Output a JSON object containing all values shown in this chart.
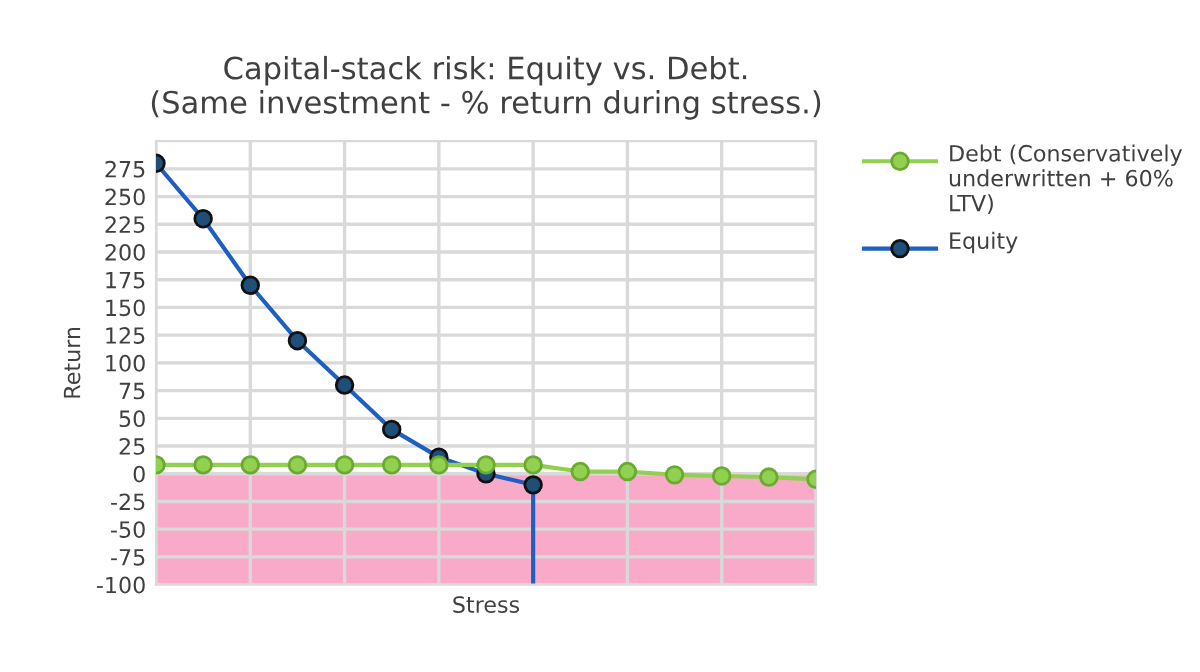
{
  "chart_data": {
    "type": "line",
    "title": "Capital-stack risk: Equity vs. Debt.\n(Same investment - % return during stress.)",
    "xlabel": "Stress",
    "ylabel": "Return",
    "categories": [
      null,
      null,
      null,
      null,
      null,
      null,
      null,
      null,
      null,
      null,
      null,
      null,
      null,
      null,
      null
    ],
    "ylim": [
      -100,
      300
    ],
    "yticks": [
      -100,
      -75,
      -50,
      -25,
      0,
      25,
      50,
      75,
      100,
      125,
      150,
      175,
      200,
      225,
      250,
      275
    ],
    "tick_labels": "y",
    "grid": true,
    "legend": "right",
    "marker": "circle",
    "line_style": "solid",
    "bands": [
      {
        "axis": "y",
        "from": -100,
        "to": 0,
        "color": "#f9aac8"
      }
    ],
    "series": [
      {
        "name": "Debt (Conservatively underwritten + 60% LTV)",
        "color": "#92d050",
        "values": [
          8,
          8,
          8,
          8,
          8,
          8,
          8,
          8,
          8,
          2,
          2,
          -1,
          -2,
          -3,
          -5
        ]
      },
      {
        "name": "Equity",
        "color": "#1f5fbf",
        "values": [
          280,
          230,
          170,
          120,
          80,
          40,
          15,
          0,
          -10,
          null,
          null,
          null,
          null,
          null,
          null
        ],
        "errors": [
          null,
          null,
          null,
          null,
          null,
          null,
          null,
          null,
          [
            -100,
            -10
          ],
          null,
          null,
          null,
          null,
          null,
          null
        ]
      }
    ]
  }
}
